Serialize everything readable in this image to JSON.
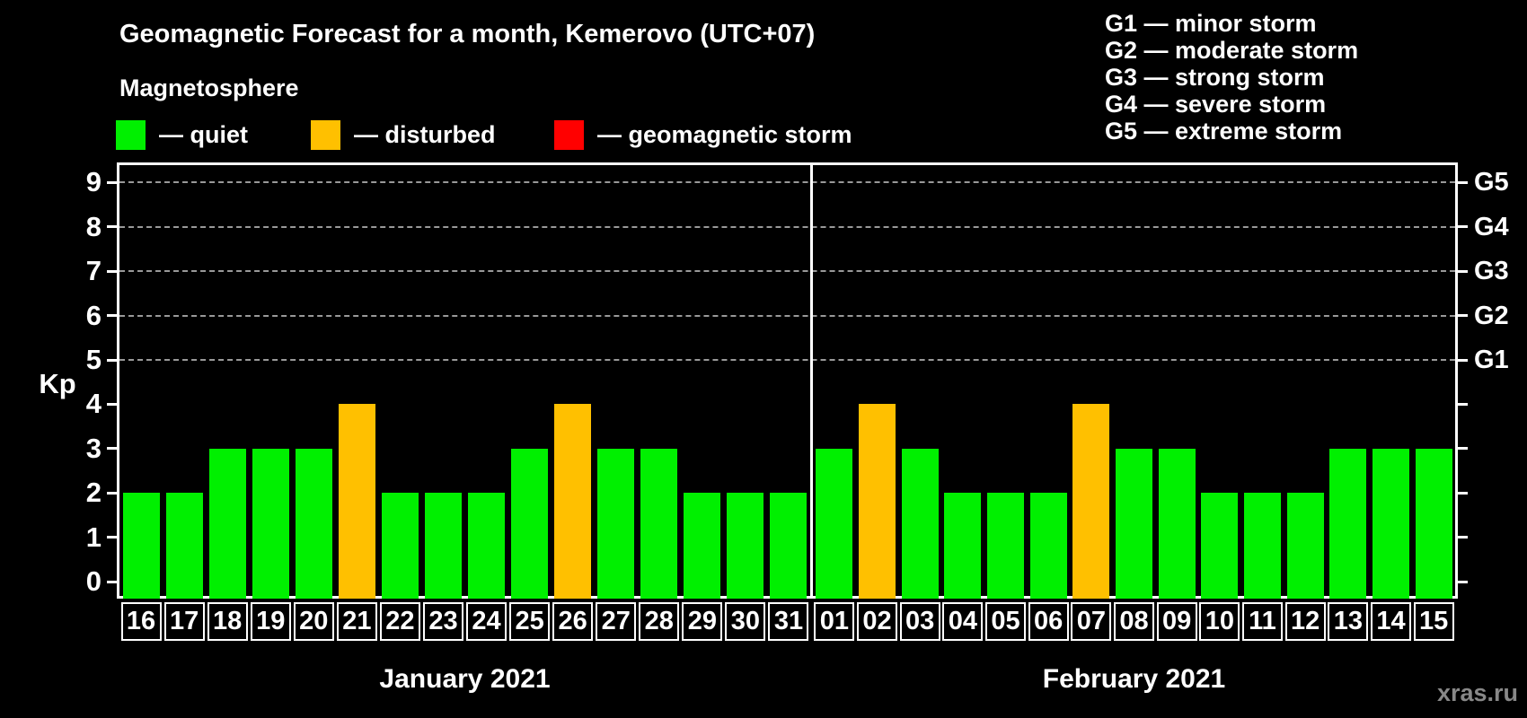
{
  "header": {
    "title": "Geomagnetic Forecast for a month, Kemerovo (UTC+07)",
    "subtitle": "Magnetosphere",
    "legend": [
      {
        "status": "quiet",
        "label": "— quiet"
      },
      {
        "status": "disturbed",
        "label": "— disturbed"
      },
      {
        "status": "storm",
        "label": "— geomagnetic storm"
      }
    ],
    "g_scale_legend": [
      "G1 — minor storm",
      "G2 — moderate storm",
      "G3 — strong storm",
      "G4 — severe storm",
      "G5 — extreme storm"
    ]
  },
  "chart_data": {
    "type": "bar",
    "title": "Geomagnetic Forecast for a month, Kemerovo (UTC+07)",
    "ylabel": "Kp",
    "ylim": [
      0,
      9
    ],
    "grid": "dashed horizontal at Kp 5-9",
    "legend_position": "top-left and top-right",
    "left_axis_ticks": [
      0,
      1,
      2,
      3,
      4,
      5,
      6,
      7,
      8,
      9
    ],
    "gridlines_kp": [
      5,
      6,
      7,
      8,
      9
    ],
    "right_axis_labels": [
      {
        "label": "G1",
        "kp": 5
      },
      {
        "label": "G2",
        "kp": 6
      },
      {
        "label": "G3",
        "kp": 7
      },
      {
        "label": "G4",
        "kp": 8
      },
      {
        "label": "G5",
        "kp": 9
      }
    ],
    "colors": {
      "quiet": "#00f000",
      "disturbed": "#ffc000",
      "storm": "#ff0000"
    },
    "months": [
      {
        "label": "January 2021",
        "days": [
          {
            "day": "16",
            "kp": 2,
            "status": "quiet"
          },
          {
            "day": "17",
            "kp": 2,
            "status": "quiet"
          },
          {
            "day": "18",
            "kp": 3,
            "status": "quiet"
          },
          {
            "day": "19",
            "kp": 3,
            "status": "quiet"
          },
          {
            "day": "20",
            "kp": 3,
            "status": "quiet"
          },
          {
            "day": "21",
            "kp": 4,
            "status": "disturbed"
          },
          {
            "day": "22",
            "kp": 2,
            "status": "quiet"
          },
          {
            "day": "23",
            "kp": 2,
            "status": "quiet"
          },
          {
            "day": "24",
            "kp": 2,
            "status": "quiet"
          },
          {
            "day": "25",
            "kp": 3,
            "status": "quiet"
          },
          {
            "day": "26",
            "kp": 4,
            "status": "disturbed"
          },
          {
            "day": "27",
            "kp": 3,
            "status": "quiet"
          },
          {
            "day": "28",
            "kp": 3,
            "status": "quiet"
          },
          {
            "day": "29",
            "kp": 2,
            "status": "quiet"
          },
          {
            "day": "30",
            "kp": 2,
            "status": "quiet"
          },
          {
            "day": "31",
            "kp": 2,
            "status": "quiet"
          }
        ]
      },
      {
        "label": "February 2021",
        "days": [
          {
            "day": "01",
            "kp": 3,
            "status": "quiet"
          },
          {
            "day": "02",
            "kp": 4,
            "status": "disturbed"
          },
          {
            "day": "03",
            "kp": 3,
            "status": "quiet"
          },
          {
            "day": "04",
            "kp": 2,
            "status": "quiet"
          },
          {
            "day": "05",
            "kp": 2,
            "status": "quiet"
          },
          {
            "day": "06",
            "kp": 2,
            "status": "quiet"
          },
          {
            "day": "07",
            "kp": 4,
            "status": "disturbed"
          },
          {
            "day": "08",
            "kp": 3,
            "status": "quiet"
          },
          {
            "day": "09",
            "kp": 3,
            "status": "quiet"
          },
          {
            "day": "10",
            "kp": 2,
            "status": "quiet"
          },
          {
            "day": "11",
            "kp": 2,
            "status": "quiet"
          },
          {
            "day": "12",
            "kp": 2,
            "status": "quiet"
          },
          {
            "day": "13",
            "kp": 3,
            "status": "quiet"
          },
          {
            "day": "14",
            "kp": 3,
            "status": "quiet"
          },
          {
            "day": "15",
            "kp": 3,
            "status": "quiet"
          }
        ]
      }
    ]
  },
  "watermark": "xras.ru"
}
